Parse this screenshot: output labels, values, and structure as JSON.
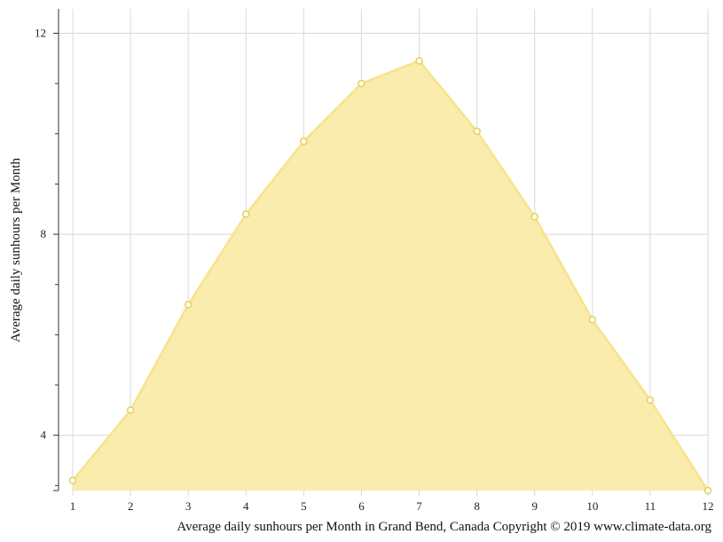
{
  "chart_data": {
    "type": "area",
    "x": [
      1,
      2,
      3,
      4,
      5,
      6,
      7,
      8,
      9,
      10,
      11,
      12
    ],
    "categories": [
      "1",
      "2",
      "3",
      "4",
      "5",
      "6",
      "7",
      "8",
      "9",
      "10",
      "11",
      "12"
    ],
    "series": [
      {
        "values": [
          3.1,
          4.5,
          6.6,
          8.4,
          9.85,
          11.0,
          11.45,
          10.05,
          8.35,
          6.3,
          4.7,
          2.9
        ]
      }
    ],
    "ylabel": "Average daily sunhours per Month",
    "xlabel": "Average daily sunhours per Month in Grand Bend, Canada Copyright © 2019 www.climate-data.org",
    "ylim": [
      2.9,
      12.45
    ],
    "xlim": [
      1,
      12
    ],
    "yticks": [
      4,
      8,
      12
    ],
    "yticks_minor": [
      3,
      5,
      6,
      7,
      9,
      10,
      11
    ],
    "grid": true,
    "legend": "none",
    "colors": {
      "fill": "#f8eaa4",
      "line": "#f7e38b",
      "marker_fill": "#ffffff",
      "marker_stroke": "#e7cf55",
      "grid": "#d9d9d9",
      "axis": "#333333"
    }
  }
}
